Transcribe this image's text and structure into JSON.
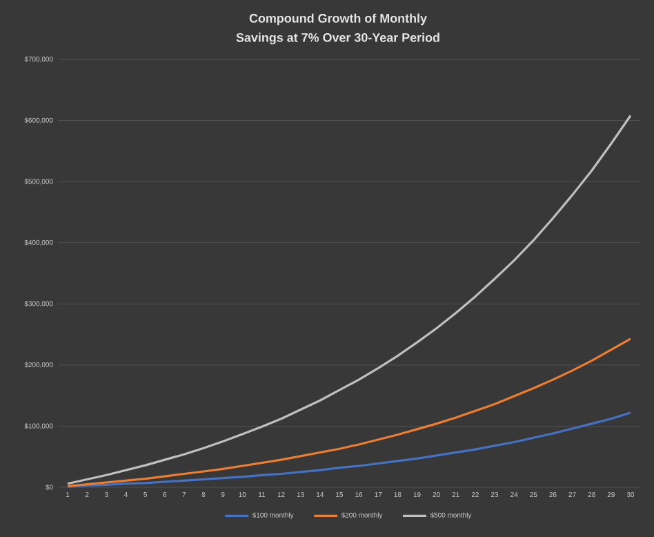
{
  "chart_data": {
    "type": "line",
    "title": "Compound Growth of Monthly\nSavings at 7% Over 30-Year Period",
    "categories": [
      "1",
      "2",
      "3",
      "4",
      "5",
      "6",
      "7",
      "8",
      "9",
      "10",
      "11",
      "12",
      "13",
      "14",
      "15",
      "16",
      "17",
      "18",
      "19",
      "20",
      "21",
      "22",
      "23",
      "24",
      "25",
      "26",
      "27",
      "28",
      "29",
      "30"
    ],
    "series": [
      {
        "name": "$100 monthly",
        "color": "#4472c4",
        "values": [
          1000,
          3000,
          4000,
          6000,
          7000,
          9000,
          11000,
          13000,
          15000,
          17000,
          20000,
          22000,
          25000,
          28000,
          32000,
          35000,
          39000,
          43000,
          47000,
          52000,
          57000,
          62000,
          68000,
          74000,
          81000,
          88000,
          96000,
          104000,
          112000,
          122000
        ]
      },
      {
        "name": "$200 monthly",
        "color": "#ed7d31",
        "values": [
          2000,
          5000,
          8000,
          11000,
          14000,
          18000,
          22000,
          26000,
          30000,
          35000,
          40000,
          45000,
          51000,
          57000,
          63000,
          70000,
          78000,
          86000,
          95000,
          104000,
          114000,
          125000,
          136000,
          149000,
          162000,
          176000,
          191000,
          207000,
          225000,
          243000
        ]
      },
      {
        "name": "$500 monthly",
        "color": "#bfbfbf",
        "values": [
          6000,
          13000,
          20000,
          28000,
          36000,
          45000,
          54000,
          64000,
          75000,
          87000,
          99000,
          112000,
          127000,
          142000,
          159000,
          176000,
          195000,
          215000,
          237000,
          260000,
          285000,
          312000,
          341000,
          371000,
          404000,
          440000,
          478000,
          518000,
          562000,
          608000
        ]
      }
    ],
    "ylim": [
      0,
      700000
    ],
    "yticks": [
      {
        "value": 0,
        "label": "$0"
      },
      {
        "value": 100000,
        "label": "$100,000"
      },
      {
        "value": 200000,
        "label": "$200,000"
      },
      {
        "value": 300000,
        "label": "$300,000"
      },
      {
        "value": 400000,
        "label": "$400,000"
      },
      {
        "value": 500000,
        "label": "$500,000"
      },
      {
        "value": 600000,
        "label": "$600,000"
      },
      {
        "value": 700000,
        "label": "$700,000"
      }
    ],
    "grid": "y",
    "legend": "bottom",
    "marker": "none",
    "line_style": "solid"
  }
}
